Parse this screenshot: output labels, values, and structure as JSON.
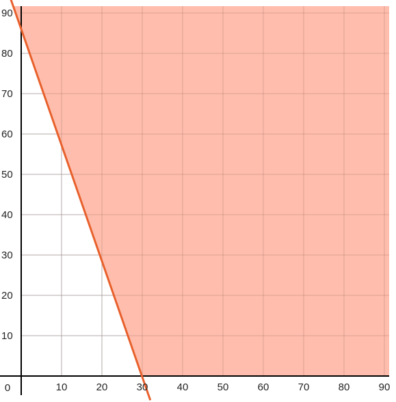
{
  "chart_data": {
    "type": "area",
    "title": "",
    "xlabel": "",
    "ylabel": "",
    "xlim": [
      0,
      90
    ],
    "ylim": [
      0,
      90
    ],
    "grid": true,
    "origin_label": "0",
    "x_ticks": [
      {
        "value": 10,
        "label": "10"
      },
      {
        "value": 20,
        "label": "20"
      },
      {
        "value": 30,
        "label": "30"
      },
      {
        "value": 40,
        "label": "40"
      },
      {
        "value": 50,
        "label": "50"
      },
      {
        "value": 60,
        "label": "60"
      },
      {
        "value": 70,
        "label": "70"
      },
      {
        "value": 80,
        "label": "80"
      },
      {
        "value": 90,
        "label": "90"
      }
    ],
    "y_ticks": [
      {
        "value": 10,
        "label": "10"
      },
      {
        "value": 20,
        "label": "20"
      },
      {
        "value": 30,
        "label": "30"
      },
      {
        "value": 40,
        "label": "40"
      },
      {
        "value": 50,
        "label": "50"
      },
      {
        "value": 60,
        "label": "60"
      },
      {
        "value": 70,
        "label": "70"
      },
      {
        "value": 80,
        "label": "80"
      },
      {
        "value": 90,
        "label": "90"
      }
    ],
    "boundary_line": {
      "points": [
        [
          -4,
          97.5
        ],
        [
          32,
          -6
        ]
      ],
      "color": "#e8602c"
    },
    "shaded_region": {
      "description_side": "above-right of boundary line",
      "color": "#ffbba9"
    }
  }
}
